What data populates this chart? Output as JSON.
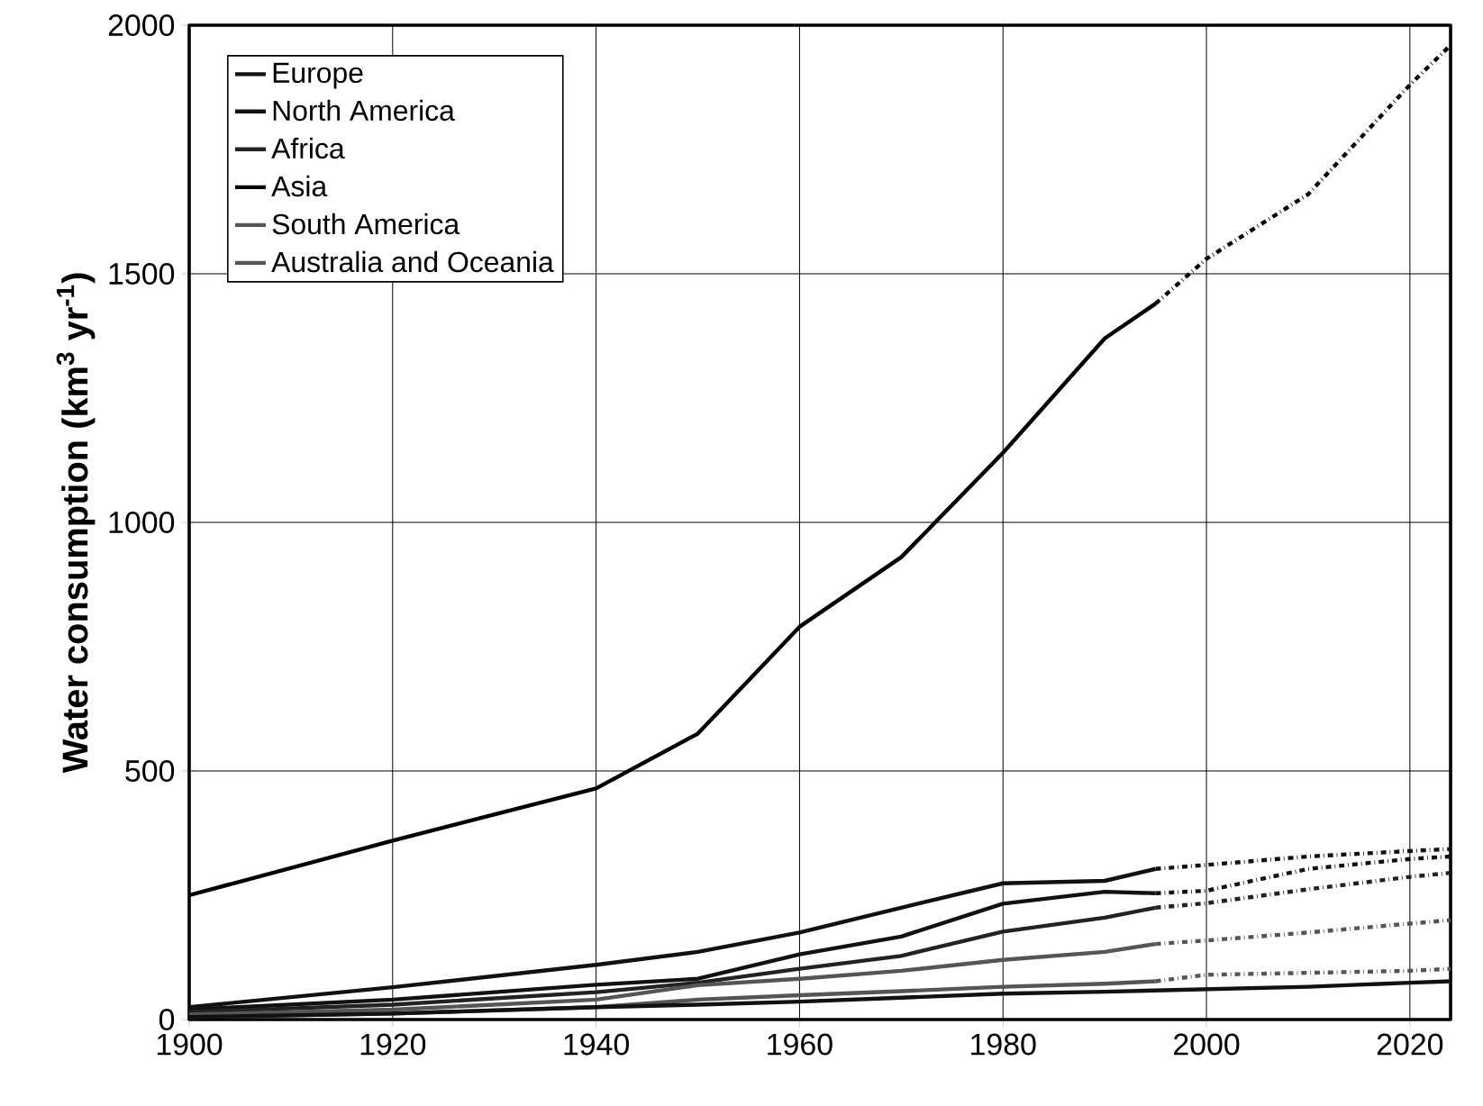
{
  "chart_data": {
    "type": "line",
    "ylabel": "**Water consumption (km$^{3}$ yr$^{-1}$)**",
    "xlim": [
      1900,
      2024
    ],
    "xticks": [
      1900,
      1920,
      1940,
      1960,
      1980,
      2000,
      2020
    ],
    "ylim": [
      0,
      2000
    ],
    "yticks": [
      0,
      500,
      1000,
      1500,
      2000
    ],
    "grid": true,
    "legend": "top left",
    "marker": "none",
    "series": [
      {
        "name": "Europe",
        "color": "#111111",
        "line_style": "solid",
        "x": [
          1900,
          1920,
          1940,
          1950,
          1960,
          1970,
          1980,
          1990,
          1995
        ],
        "values": [
          20,
          40,
          70,
          82,
          131,
          167,
          233,
          257,
          254
        ]
      },
      {
        "name": "North America",
        "color": "#111111",
        "line_style": "solid",
        "x": [
          1900,
          1920,
          1940,
          1950,
          1960,
          1970,
          1980,
          1990,
          1995
        ],
        "values": [
          25,
          65,
          110,
          136,
          175,
          225,
          274,
          279,
          303
        ]
      },
      {
        "name": "Africa",
        "color": "#222222",
        "line_style": "solid",
        "x": [
          1900,
          1920,
          1940,
          1950,
          1960,
          1970,
          1980,
          1990,
          1995
        ],
        "values": [
          15,
          30,
          55,
          74,
          102,
          128,
          177,
          205,
          225
        ]
      },
      {
        "name": "Asia",
        "color": "#000000",
        "line_style": "solid",
        "x": [
          1900,
          1920,
          1940,
          1950,
          1960,
          1970,
          1980,
          1990,
          1995
        ],
        "values": [
          250,
          360,
          465,
          575,
          790,
          930,
          1140,
          1370,
          1440
        ]
      },
      {
        "name": "South America",
        "color": "#555555",
        "line_style": "solid",
        "x": [
          1900,
          1920,
          1940,
          1950,
          1960,
          1970,
          1980,
          1990,
          1995
        ],
        "values": [
          10,
          20,
          40,
          69,
          82,
          98,
          120,
          136,
          152
        ]
      },
      {
        "name": "Australia and Oceania",
        "color": "#555555",
        "line_style": "solid",
        "x": [
          1900,
          1920,
          1940,
          1950,
          1960,
          1970,
          1980,
          1990,
          1995
        ],
        "values": [
          5,
          12,
          25,
          40,
          49,
          57,
          66,
          72,
          77
        ]
      },
      {
        "color": "#111111",
        "line_style": "solid",
        "x": [
          1900,
          1920,
          1940,
          1950,
          1960,
          1970,
          1980,
          1990,
          2000,
          2010,
          2020,
          2024
        ],
        "values": [
          5,
          12,
          25,
          30,
          36,
          44,
          52,
          56,
          61,
          66,
          74,
          77
        ]
      },
      {
        "color": "#111111",
        "line_style": "dashed",
        "x": [
          1995,
          2000,
          2010,
          2020,
          2024
        ],
        "values": [
          254,
          259,
          303,
          323,
          328
        ]
      },
      {
        "color": "#111111",
        "line_style": "dashed",
        "x": [
          1995,
          2000,
          2010,
          2020,
          2024
        ],
        "values": [
          303,
          311,
          328,
          339,
          343
        ]
      },
      {
        "color": "#222222",
        "line_style": "dashed",
        "x": [
          1995,
          2000,
          2010,
          2020,
          2024
        ],
        "values": [
          225,
          234,
          262,
          287,
          295
        ]
      },
      {
        "color": "#000000",
        "line_style": "dashed",
        "x": [
          1995,
          2000,
          2010,
          2020,
          2024
        ],
        "values": [
          1440,
          1530,
          1660,
          1880,
          1960
        ]
      },
      {
        "color": "#555555",
        "line_style": "dashed",
        "x": [
          1995,
          2000,
          2010,
          2020,
          2024
        ],
        "values": [
          152,
          159,
          175,
          193,
          200
        ]
      },
      {
        "color": "#555555",
        "line_style": "dashed",
        "x": [
          1995,
          2000,
          2010,
          2020,
          2024
        ],
        "values": [
          77,
          90,
          94,
          98,
          102
        ]
      }
    ]
  }
}
